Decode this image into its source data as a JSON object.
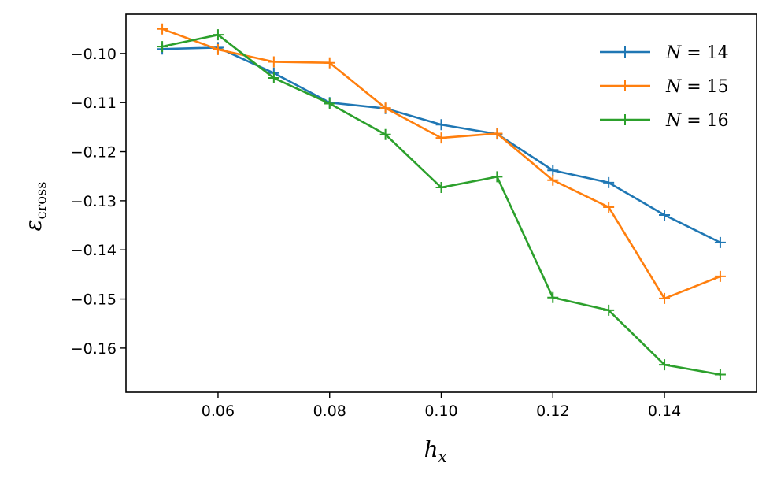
{
  "chart_data": {
    "type": "line",
    "title": "",
    "xlabel": {
      "main": "h",
      "sub": "x"
    },
    "ylabel": {
      "main": "ε",
      "sub": "cross"
    },
    "xlim": [
      0.0435,
      0.1565
    ],
    "ylim": [
      -0.169,
      -0.092
    ],
    "x_ticks": [
      0.06,
      0.08,
      0.1,
      0.12,
      0.14
    ],
    "x_tick_labels": [
      "0.06",
      "0.08",
      "0.10",
      "0.12",
      "0.14"
    ],
    "y_ticks": [
      -0.1,
      -0.11,
      -0.12,
      -0.13,
      -0.14,
      -0.15,
      -0.16
    ],
    "y_tick_labels": [
      "−0.10",
      "−0.11",
      "−0.12",
      "−0.13",
      "−0.14",
      "−0.15",
      "−0.16"
    ],
    "grid": false,
    "legend_position": "top-right",
    "marker": "+",
    "x": [
      0.05,
      0.06,
      0.07,
      0.08,
      0.09,
      0.1,
      0.11,
      0.12,
      0.13,
      0.14,
      0.15
    ],
    "series": [
      {
        "name": "N = 14",
        "legend_main": "N",
        "legend_value": "14",
        "color": "#1f77b4",
        "values": [
          -0.0991,
          -0.0988,
          -0.104,
          -0.11,
          -0.1112,
          -0.1145,
          -0.1164,
          -0.1238,
          -0.1263,
          -0.1329,
          -0.1385
        ]
      },
      {
        "name": "N = 15",
        "legend_main": "N",
        "legend_value": "15",
        "color": "#ff7f0e",
        "values": [
          -0.095,
          -0.0992,
          -0.1017,
          -0.1019,
          -0.1111,
          -0.1172,
          -0.1163,
          -0.1258,
          -0.1313,
          -0.1499,
          -0.1454
        ]
      },
      {
        "name": "N = 16",
        "legend_main": "N",
        "legend_value": "16",
        "color": "#2ca02c",
        "values": [
          -0.0986,
          -0.0962,
          -0.105,
          -0.1102,
          -0.1165,
          -0.1273,
          -0.1251,
          -0.1497,
          -0.1523,
          -0.1634,
          -0.1654
        ]
      }
    ]
  }
}
